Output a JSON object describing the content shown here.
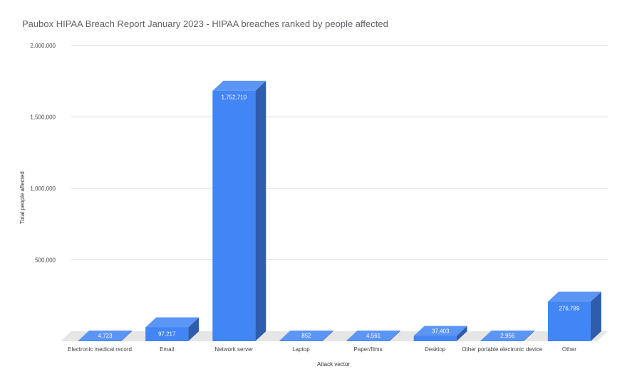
{
  "chart_data": {
    "type": "bar",
    "title": "Paubox HIPAA Breach Report January 2023 - HIPAA breaches ranked by people affected",
    "xlabel": "Attack vector",
    "ylabel": "Total people affected",
    "categories": [
      "Electronic medical record",
      "Email",
      "Network server",
      "Laptop",
      "Paper/films",
      "Desktop",
      "Other portable electronic device",
      "Other"
    ],
    "values": [
      4723,
      97217,
      1752710,
      852,
      4561,
      37403,
      2956,
      276789
    ],
    "data_labels": [
      "4,723",
      "97,217",
      "1,752,710",
      "852",
      "4,561",
      "37,403",
      "2,956",
      "276,789"
    ],
    "ylim": [
      0,
      2000000
    ],
    "yticks": [
      500000,
      1000000,
      1500000,
      2000000
    ],
    "ytick_labels": [
      "500,000",
      "1,000,000",
      "1,500,000",
      "2,000,000"
    ],
    "grid": true,
    "bar_color": "#4285f4",
    "bar_side_color": "#2f5cad",
    "bar_top_color": "#5b95f6",
    "floor_color": "#e6e6e6"
  }
}
